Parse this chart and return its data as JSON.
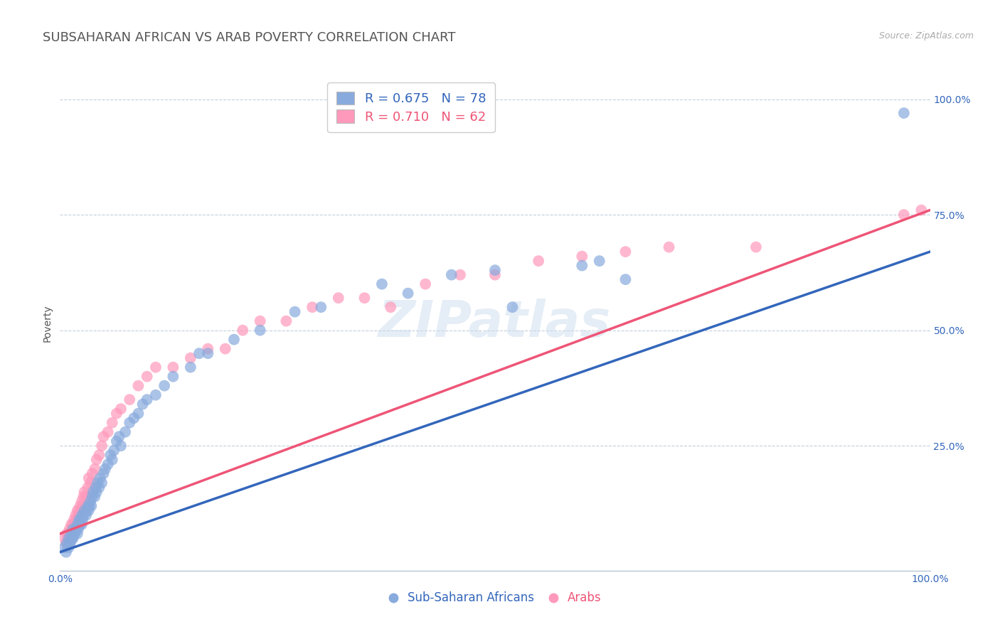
{
  "title": "SUBSAHARAN AFRICAN VS ARAB POVERTY CORRELATION CHART",
  "source_text": "Source: ZipAtlas.com",
  "ylabel": "Poverty",
  "xlim": [
    0,
    1
  ],
  "ylim": [
    -0.02,
    1.05
  ],
  "blue_color": "#88AADD",
  "pink_color": "#FF99BB",
  "blue_line_color": "#3366BB",
  "pink_line_color": "#EE5577",
  "blue_r": 0.675,
  "blue_n": 78,
  "pink_r": 0.71,
  "pink_n": 62,
  "watermark": "ZIPatlas",
  "title_fontsize": 13,
  "label_fontsize": 10,
  "tick_fontsize": 10,
  "blue_line_y_start": 0.02,
  "blue_line_y_end": 0.67,
  "pink_line_y_start": 0.06,
  "pink_line_y_end": 0.76,
  "blue_scatter_x": [
    0.005,
    0.007,
    0.008,
    0.01,
    0.01,
    0.011,
    0.012,
    0.013,
    0.013,
    0.014,
    0.015,
    0.015,
    0.016,
    0.017,
    0.018,
    0.019,
    0.02,
    0.02,
    0.021,
    0.022,
    0.022,
    0.023,
    0.024,
    0.025,
    0.025,
    0.026,
    0.027,
    0.028,
    0.03,
    0.031,
    0.032,
    0.033,
    0.034,
    0.035,
    0.036,
    0.037,
    0.038,
    0.04,
    0.041,
    0.042,
    0.043,
    0.045,
    0.046,
    0.048,
    0.05,
    0.052,
    0.055,
    0.058,
    0.06,
    0.062,
    0.065,
    0.068,
    0.07,
    0.075,
    0.08,
    0.085,
    0.09,
    0.095,
    0.1,
    0.11,
    0.12,
    0.13,
    0.15,
    0.16,
    0.17,
    0.2,
    0.23,
    0.27,
    0.3,
    0.37,
    0.4,
    0.45,
    0.5,
    0.52,
    0.6,
    0.62,
    0.65,
    0.97
  ],
  "blue_scatter_y": [
    0.03,
    0.02,
    0.04,
    0.03,
    0.05,
    0.04,
    0.04,
    0.05,
    0.06,
    0.05,
    0.05,
    0.07,
    0.06,
    0.06,
    0.07,
    0.07,
    0.06,
    0.08,
    0.07,
    0.08,
    0.09,
    0.08,
    0.09,
    0.08,
    0.1,
    0.09,
    0.1,
    0.11,
    0.1,
    0.11,
    0.12,
    0.11,
    0.12,
    0.13,
    0.12,
    0.14,
    0.15,
    0.14,
    0.16,
    0.15,
    0.17,
    0.16,
    0.18,
    0.17,
    0.19,
    0.2,
    0.21,
    0.23,
    0.22,
    0.24,
    0.26,
    0.27,
    0.25,
    0.28,
    0.3,
    0.31,
    0.32,
    0.34,
    0.35,
    0.36,
    0.38,
    0.4,
    0.42,
    0.45,
    0.45,
    0.48,
    0.5,
    0.54,
    0.55,
    0.6,
    0.58,
    0.62,
    0.63,
    0.55,
    0.64,
    0.65,
    0.61,
    0.97
  ],
  "pink_scatter_x": [
    0.005,
    0.007,
    0.008,
    0.009,
    0.01,
    0.011,
    0.012,
    0.013,
    0.014,
    0.015,
    0.016,
    0.017,
    0.018,
    0.019,
    0.02,
    0.021,
    0.022,
    0.023,
    0.024,
    0.025,
    0.026,
    0.027,
    0.028,
    0.03,
    0.032,
    0.033,
    0.035,
    0.037,
    0.04,
    0.042,
    0.045,
    0.048,
    0.05,
    0.055,
    0.06,
    0.065,
    0.07,
    0.08,
    0.09,
    0.1,
    0.11,
    0.13,
    0.15,
    0.17,
    0.19,
    0.21,
    0.23,
    0.26,
    0.29,
    0.32,
    0.35,
    0.38,
    0.42,
    0.46,
    0.5,
    0.55,
    0.6,
    0.65,
    0.7,
    0.8,
    0.97,
    0.99
  ],
  "pink_scatter_y": [
    0.05,
    0.04,
    0.06,
    0.05,
    0.06,
    0.07,
    0.06,
    0.08,
    0.07,
    0.08,
    0.09,
    0.08,
    0.1,
    0.09,
    0.11,
    0.1,
    0.11,
    0.12,
    0.11,
    0.13,
    0.12,
    0.14,
    0.15,
    0.14,
    0.16,
    0.18,
    0.17,
    0.19,
    0.2,
    0.22,
    0.23,
    0.25,
    0.27,
    0.28,
    0.3,
    0.32,
    0.33,
    0.35,
    0.38,
    0.4,
    0.42,
    0.42,
    0.44,
    0.46,
    0.46,
    0.5,
    0.52,
    0.52,
    0.55,
    0.57,
    0.57,
    0.55,
    0.6,
    0.62,
    0.62,
    0.65,
    0.66,
    0.67,
    0.68,
    0.68,
    0.75,
    0.76
  ]
}
